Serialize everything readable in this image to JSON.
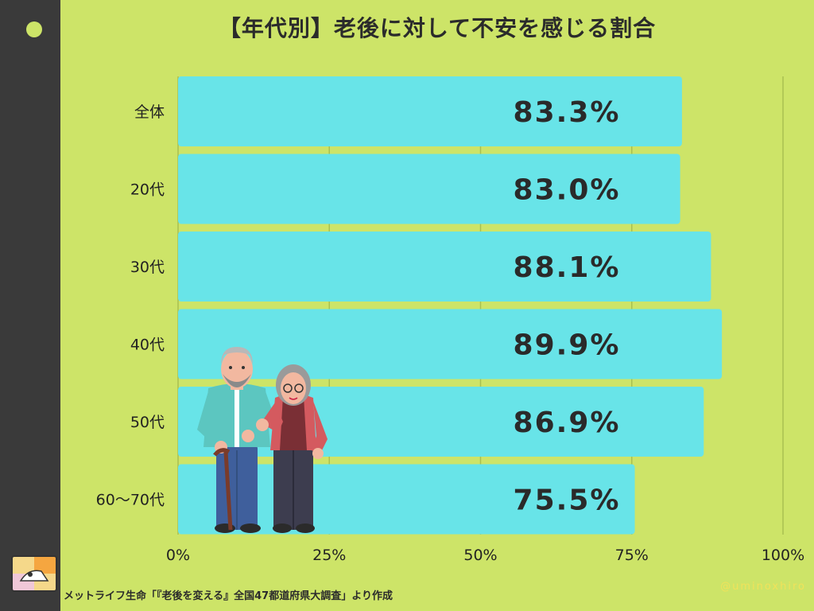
{
  "title": "【年代別】老後に対して不安を感じる割合",
  "source": "メットライフ生命「『老後を変える』全国47都道府県大調査」より作成",
  "credit": "@uminoxhiro",
  "colors": {
    "background": "#cde468",
    "bar": "#68e4e8",
    "sidebar": "#3a3a3a",
    "grid": "#a9c050"
  },
  "chart_data": {
    "type": "bar",
    "orientation": "horizontal",
    "categories": [
      "全体",
      "20代",
      "30代",
      "40代",
      "50代",
      "60〜70代"
    ],
    "values": [
      83.3,
      83.0,
      88.1,
      89.9,
      86.9,
      75.5
    ],
    "value_labels": [
      "83.3%",
      "83.0%",
      "88.1%",
      "89.9%",
      "86.9%",
      "75.5%"
    ],
    "xlim": [
      0,
      100
    ],
    "x_ticks": [
      0,
      25,
      50,
      75,
      100
    ],
    "x_tick_labels": [
      "0%",
      "25%",
      "50%",
      "75%",
      "100%"
    ],
    "grid": true
  }
}
